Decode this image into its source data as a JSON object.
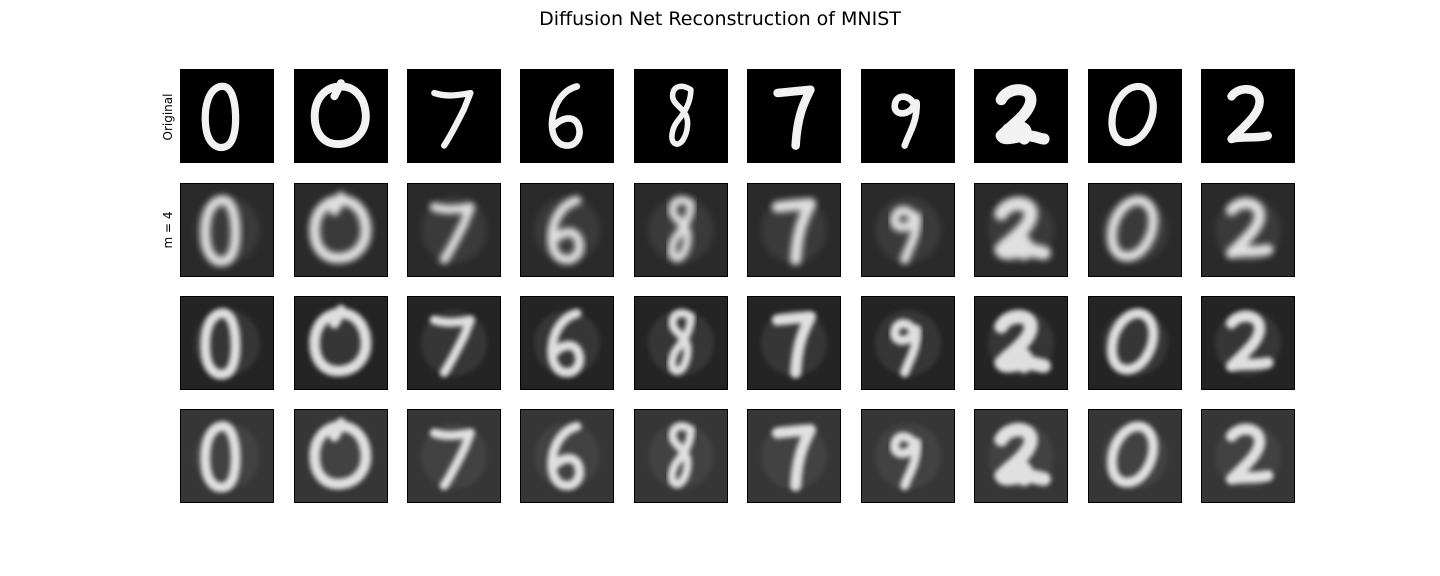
{
  "title": "Diffusion Net Reconstruction of MNIST",
  "row_labels": [
    "Original",
    "m = 4",
    "",
    ""
  ],
  "digits": [
    "0",
    "0",
    "7",
    "6",
    "8",
    "7",
    "9",
    "2",
    "0",
    "2"
  ],
  "rows": [
    {
      "kind": "original",
      "background": "#000000",
      "blur": 0
    },
    {
      "kind": "reconstruction",
      "background": "#2a2a2a",
      "blur": 3.2
    },
    {
      "kind": "reconstruction",
      "background": "#242424",
      "blur": 2.4
    },
    {
      "kind": "reconstruction",
      "background": "#363636",
      "blur": 2.6
    }
  ],
  "colors": {
    "stroke": "#f2f2f2",
    "frame": "#000000"
  }
}
